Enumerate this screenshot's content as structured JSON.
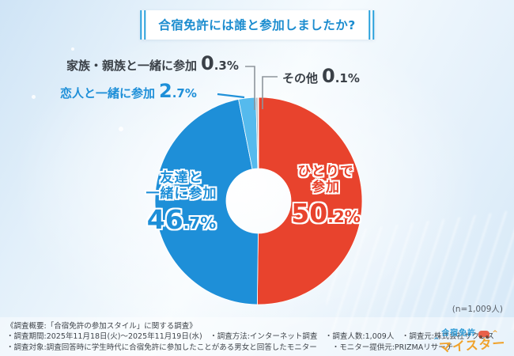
{
  "title": "合宿免許には誰と参加しましたか?",
  "chart_data": {
    "type": "pie",
    "donut": true,
    "title": "合宿免許には誰と参加しましたか?",
    "n_label": "(n=1,009人)",
    "start_angle_deg": 0,
    "direction": "clockwise",
    "legend_position": "none",
    "segments": [
      {
        "label": "ひとりで参加",
        "label_lines": [
          "ひとりで",
          "参加"
        ],
        "value": 50.2,
        "color": "#e8432d",
        "label_placement": "inside"
      },
      {
        "label": "友達と一緒に参加",
        "label_lines": [
          "友達と",
          "一緒に参加"
        ],
        "value": 46.7,
        "color": "#1e8fd8",
        "label_placement": "inside"
      },
      {
        "label": "恋人と一緒に参加",
        "value": 2.7,
        "color": "#55baed",
        "label_placement": "callout"
      },
      {
        "label": "家族・親族と一緒に参加",
        "value": 0.3,
        "color": "#a9b3ba",
        "label_placement": "callout"
      },
      {
        "label": "その他",
        "value": 0.1,
        "color": "#d8dde1",
        "label_placement": "callout"
      }
    ]
  },
  "colors": {
    "title_text": "#1b8ccf",
    "title_bars": "#29a0dc",
    "leader_gray": "#8e959c",
    "leader_blue": "#2191d9"
  },
  "footer": {
    "lines": [
      "《調査概要:「合宿免許の参加スタイル」に関する調査》",
      "・調査期間:2025年11月18日(火)〜2025年11月19日(水)　・調査方法:インターネット調査　・調査人数:1,009人　・調査元:株式会社サクラス",
      "・調査対象:調査回答時に学生時代に合宿免許に参加したことがある男女と回答したモニター　　・モニター提供元:PRIZMAリサーチ"
    ]
  },
  "logo": {
    "line1": "合宿免許",
    "line2": "マイスター"
  }
}
